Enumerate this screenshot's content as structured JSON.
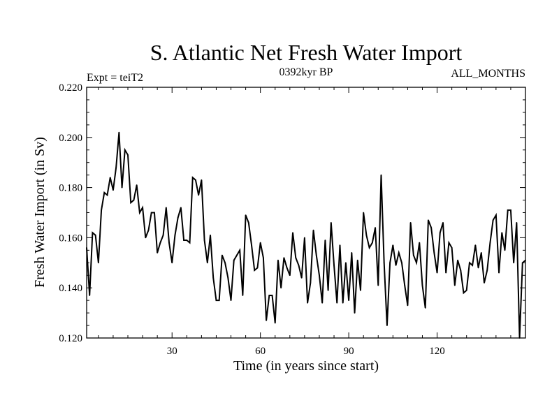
{
  "chart_data": {
    "type": "line",
    "title": "S. Atlantic Net Fresh Water Import",
    "subtitle": "0392kyr BP",
    "left_label": "Expt = teiT2",
    "right_label": "ALL_MONTHS",
    "xlabel": "Time (in years since start)",
    "ylabel": "Fresh Water Import (in Sv)",
    "xlim": [
      1,
      150
    ],
    "ylim": [
      0.12,
      0.22
    ],
    "x_major_ticks": [
      30,
      60,
      90,
      120
    ],
    "x_minor_step": 5,
    "y_major_ticks": [
      0.12,
      0.14,
      0.16,
      0.18,
      0.2,
      0.22
    ],
    "y_tick_labels": [
      "0.120",
      "0.140",
      "0.160",
      "0.180",
      "0.200",
      "0.220"
    ],
    "y_minor_step": 0.005,
    "grid": false,
    "series": [
      {
        "name": "S. Atlantic Net Fresh Water Import",
        "x_start": 1,
        "x_step": 1,
        "values": [
          0.156,
          0.137,
          0.162,
          0.161,
          0.15,
          0.171,
          0.178,
          0.177,
          0.184,
          0.179,
          0.188,
          0.202,
          0.18,
          0.195,
          0.193,
          0.174,
          0.175,
          0.181,
          0.17,
          0.172,
          0.16,
          0.163,
          0.17,
          0.17,
          0.154,
          0.158,
          0.161,
          0.172,
          0.158,
          0.15,
          0.161,
          0.168,
          0.172,
          0.159,
          0.159,
          0.158,
          0.184,
          0.183,
          0.177,
          0.183,
          0.159,
          0.15,
          0.161,
          0.144,
          0.135,
          0.135,
          0.153,
          0.15,
          0.144,
          0.135,
          0.151,
          0.153,
          0.155,
          0.137,
          0.169,
          0.166,
          0.157,
          0.147,
          0.148,
          0.158,
          0.152,
          0.127,
          0.137,
          0.137,
          0.126,
          0.151,
          0.14,
          0.152,
          0.148,
          0.145,
          0.162,
          0.152,
          0.149,
          0.144,
          0.16,
          0.134,
          0.142,
          0.163,
          0.153,
          0.145,
          0.134,
          0.159,
          0.139,
          0.166,
          0.149,
          0.134,
          0.157,
          0.134,
          0.15,
          0.135,
          0.154,
          0.13,
          0.151,
          0.139,
          0.17,
          0.161,
          0.156,
          0.158,
          0.164,
          0.141,
          0.185,
          0.15,
          0.125,
          0.15,
          0.157,
          0.149,
          0.154,
          0.15,
          0.141,
          0.133,
          0.166,
          0.153,
          0.15,
          0.158,
          0.141,
          0.132,
          0.167,
          0.164,
          0.154,
          0.146,
          0.162,
          0.166,
          0.146,
          0.158,
          0.156,
          0.141,
          0.151,
          0.147,
          0.138,
          0.139,
          0.15,
          0.149,
          0.157,
          0.148,
          0.154,
          0.142,
          0.147,
          0.158,
          0.167,
          0.169,
          0.146,
          0.162,
          0.155,
          0.171,
          0.171,
          0.15,
          0.166,
          0.12,
          0.15,
          0.151
        ]
      }
    ]
  }
}
